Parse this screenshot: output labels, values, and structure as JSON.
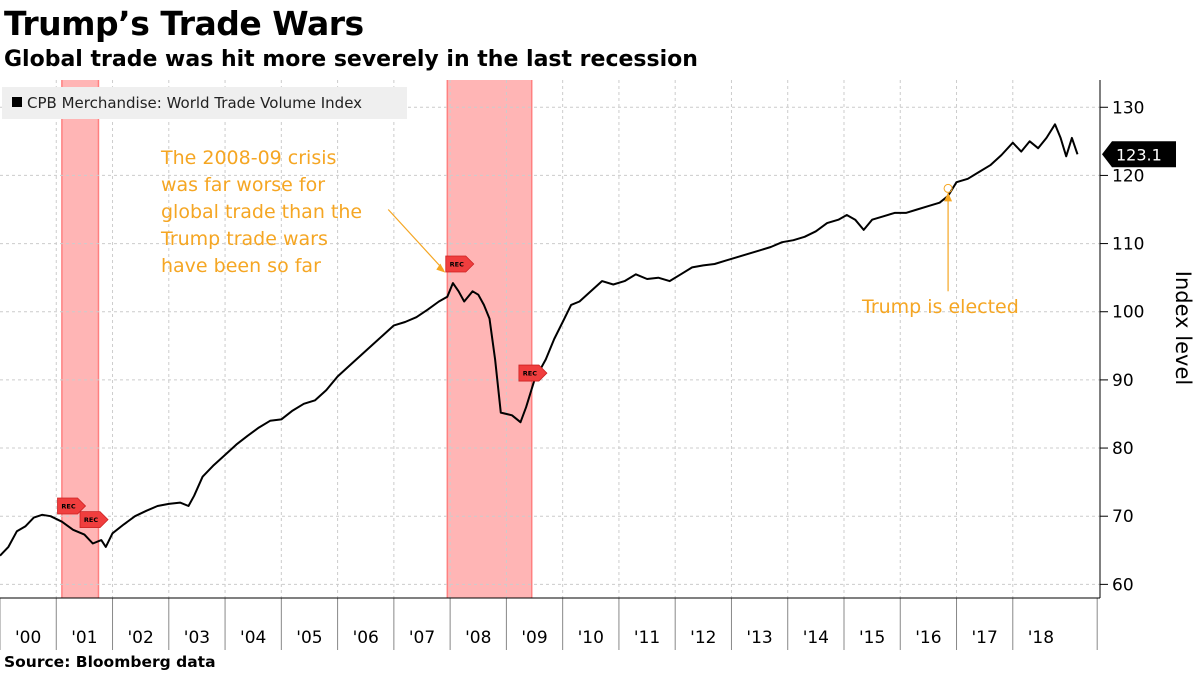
{
  "header": {
    "title": "Trump’s Trade Wars",
    "subtitle": "Global trade was hit more severely in the last recession"
  },
  "footer": {
    "source": "Source: Bloomberg data"
  },
  "colors": {
    "line": "#000000",
    "recession_band": "#ff9c9c",
    "annotation": "#f5a623",
    "rec_marker": "#f03e3e",
    "grid": "#cccccc"
  },
  "chart_data": {
    "type": "line",
    "title": "Trump’s Trade Wars",
    "subtitle": "Global trade was hit more severely in the last recession",
    "xlabel": "",
    "ylabel": "Index level",
    "xlim": [
      2000.0,
      2019.55
    ],
    "ylim": [
      58,
      134
    ],
    "grid": true,
    "y_ticks": [
      60,
      70,
      80,
      90,
      100,
      110,
      120,
      130
    ],
    "x_ticks": [
      {
        "x": 2000.5,
        "label": "'00"
      },
      {
        "x": 2001.5,
        "label": "'01"
      },
      {
        "x": 2002.5,
        "label": "'02"
      },
      {
        "x": 2003.5,
        "label": "'03"
      },
      {
        "x": 2004.5,
        "label": "'04"
      },
      {
        "x": 2005.5,
        "label": "'05"
      },
      {
        "x": 2006.5,
        "label": "'06"
      },
      {
        "x": 2007.5,
        "label": "'07"
      },
      {
        "x": 2008.5,
        "label": "'08"
      },
      {
        "x": 2009.5,
        "label": "'09"
      },
      {
        "x": 2010.5,
        "label": "'10"
      },
      {
        "x": 2011.5,
        "label": "'11"
      },
      {
        "x": 2012.5,
        "label": "'12"
      },
      {
        "x": 2013.5,
        "label": "'13"
      },
      {
        "x": 2014.5,
        "label": "'14"
      },
      {
        "x": 2015.5,
        "label": "'15"
      },
      {
        "x": 2016.5,
        "label": "'16"
      },
      {
        "x": 2017.5,
        "label": "'17"
      },
      {
        "x": 2018.5,
        "label": "'18"
      }
    ],
    "legend": {
      "position": "top-left",
      "entries": [
        "CPB Merchandise: World Trade Volume Index"
      ]
    },
    "series": [
      {
        "name": "CPB Merchandise: World Trade Volume Index",
        "points": [
          [
            2000.0,
            64.2
          ],
          [
            2000.15,
            65.5
          ],
          [
            2000.3,
            67.8
          ],
          [
            2000.45,
            68.5
          ],
          [
            2000.6,
            69.8
          ],
          [
            2000.75,
            70.2
          ],
          [
            2000.9,
            70.0
          ],
          [
            2001.1,
            69.2
          ],
          [
            2001.3,
            68.0
          ],
          [
            2001.5,
            67.3
          ],
          [
            2001.65,
            66.0
          ],
          [
            2001.8,
            66.5
          ],
          [
            2001.88,
            65.5
          ],
          [
            2002.0,
            67.5
          ],
          [
            2002.2,
            68.8
          ],
          [
            2002.4,
            70.0
          ],
          [
            2002.6,
            70.8
          ],
          [
            2002.8,
            71.5
          ],
          [
            2003.0,
            71.8
          ],
          [
            2003.2,
            72.0
          ],
          [
            2003.35,
            71.5
          ],
          [
            2003.45,
            73.0
          ],
          [
            2003.6,
            75.8
          ],
          [
            2003.8,
            77.5
          ],
          [
            2004.0,
            79.0
          ],
          [
            2004.2,
            80.5
          ],
          [
            2004.4,
            81.8
          ],
          [
            2004.6,
            83.0
          ],
          [
            2004.8,
            84.0
          ],
          [
            2005.0,
            84.2
          ],
          [
            2005.2,
            85.5
          ],
          [
            2005.4,
            86.5
          ],
          [
            2005.6,
            87.0
          ],
          [
            2005.8,
            88.5
          ],
          [
            2006.0,
            90.5
          ],
          [
            2006.2,
            92.0
          ],
          [
            2006.4,
            93.5
          ],
          [
            2006.6,
            95.0
          ],
          [
            2006.8,
            96.5
          ],
          [
            2007.0,
            98.0
          ],
          [
            2007.2,
            98.5
          ],
          [
            2007.4,
            99.2
          ],
          [
            2007.6,
            100.3
          ],
          [
            2007.8,
            101.5
          ],
          [
            2007.95,
            102.2
          ],
          [
            2008.05,
            104.2
          ],
          [
            2008.15,
            103.0
          ],
          [
            2008.25,
            101.5
          ],
          [
            2008.4,
            103.0
          ],
          [
            2008.5,
            102.5
          ],
          [
            2008.6,
            101.0
          ],
          [
            2008.7,
            99.0
          ],
          [
            2008.8,
            93.0
          ],
          [
            2008.9,
            85.2
          ],
          [
            2009.1,
            84.8
          ],
          [
            2009.25,
            83.8
          ],
          [
            2009.35,
            86.0
          ],
          [
            2009.5,
            90.0
          ],
          [
            2009.7,
            93.0
          ],
          [
            2009.85,
            96.0
          ],
          [
            2010.0,
            98.5
          ],
          [
            2010.15,
            101.0
          ],
          [
            2010.3,
            101.5
          ],
          [
            2010.5,
            103.0
          ],
          [
            2010.7,
            104.5
          ],
          [
            2010.9,
            104.0
          ],
          [
            2011.1,
            104.5
          ],
          [
            2011.3,
            105.5
          ],
          [
            2011.5,
            104.8
          ],
          [
            2011.7,
            105.0
          ],
          [
            2011.9,
            104.5
          ],
          [
            2012.1,
            105.5
          ],
          [
            2012.3,
            106.5
          ],
          [
            2012.5,
            106.8
          ],
          [
            2012.7,
            107.0
          ],
          [
            2012.9,
            107.5
          ],
          [
            2013.1,
            108.0
          ],
          [
            2013.3,
            108.5
          ],
          [
            2013.5,
            109.0
          ],
          [
            2013.7,
            109.5
          ],
          [
            2013.9,
            110.2
          ],
          [
            2014.1,
            110.5
          ],
          [
            2014.3,
            111.0
          ],
          [
            2014.5,
            111.8
          ],
          [
            2014.7,
            113.0
          ],
          [
            2014.9,
            113.5
          ],
          [
            2015.05,
            114.2
          ],
          [
            2015.2,
            113.5
          ],
          [
            2015.35,
            112.0
          ],
          [
            2015.5,
            113.5
          ],
          [
            2015.7,
            114.0
          ],
          [
            2015.9,
            114.5
          ],
          [
            2016.1,
            114.5
          ],
          [
            2016.3,
            115.0
          ],
          [
            2016.5,
            115.5
          ],
          [
            2016.7,
            116.0
          ],
          [
            2016.85,
            117.0
          ],
          [
            2017.0,
            119.0
          ],
          [
            2017.2,
            119.5
          ],
          [
            2017.4,
            120.5
          ],
          [
            2017.6,
            121.5
          ],
          [
            2017.8,
            123.0
          ],
          [
            2018.0,
            124.8
          ],
          [
            2018.15,
            123.5
          ],
          [
            2018.3,
            125.0
          ],
          [
            2018.45,
            124.0
          ],
          [
            2018.6,
            125.5
          ],
          [
            2018.75,
            127.5
          ],
          [
            2018.85,
            125.5
          ],
          [
            2018.95,
            122.8
          ],
          [
            2019.05,
            125.5
          ],
          [
            2019.15,
            123.1
          ]
        ]
      }
    ],
    "recession_bands": [
      {
        "start": 2001.1,
        "end": 2001.75
      },
      {
        "start": 2007.95,
        "end": 2009.45
      }
    ],
    "rec_markers": [
      {
        "x": 2001.2,
        "y": 71.5,
        "label": "REC"
      },
      {
        "x": 2001.6,
        "y": 69.5,
        "label": "REC"
      },
      {
        "x": 2008.1,
        "y": 107.0,
        "label": "REC"
      },
      {
        "x": 2009.4,
        "y": 91.0,
        "label": "REC"
      }
    ],
    "last_value_label": "123.1",
    "annotations": [
      {
        "lines": [
          "The 2008-09 crisis",
          "was far worse for",
          "global trade than the",
          "Trump trade wars",
          "have been so far"
        ],
        "target": {
          "x": 2007.95,
          "y": 105.3
        },
        "text_anchor_point": {
          "x": 2006.9,
          "y": 115.0
        }
      },
      {
        "lines": [
          "Trump is elected"
        ],
        "target": {
          "x": 2016.85,
          "y": 117.8
        },
        "text_anchor_point": {
          "x": 2016.85,
          "y": 103.0
        }
      }
    ]
  }
}
